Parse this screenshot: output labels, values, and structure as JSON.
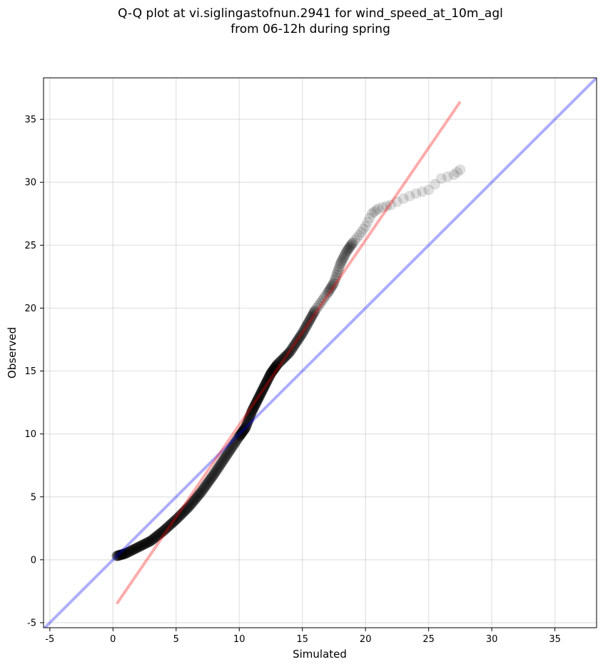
{
  "chart_data": {
    "type": "scatter",
    "title": "Q-Q plot at vi.siglingastofnun.2941 for wind_speed_at_10m_agl\nfrom 06-12h during spring",
    "title_lines": [
      "Q-Q plot at vi.siglingastofnun.2941 for wind_speed_at_10m_agl",
      "from 06-12h during spring"
    ],
    "xlabel": "Simulated",
    "ylabel": "Observed",
    "xlim": [
      -5.5,
      38.3
    ],
    "ylim": [
      -5.4,
      38.3
    ],
    "xticks": [
      -5,
      0,
      5,
      10,
      15,
      20,
      25,
      30,
      35
    ],
    "yticks": [
      -5,
      0,
      5,
      10,
      15,
      20,
      25,
      30,
      35
    ],
    "grid": true,
    "quantile_curve": [
      [
        0.3,
        0.3
      ],
      [
        1.0,
        0.5
      ],
      [
        2.0,
        1.0
      ],
      [
        3.0,
        1.5
      ],
      [
        4.0,
        2.3
      ],
      [
        5.0,
        3.2
      ],
      [
        6.0,
        4.2
      ],
      [
        7.0,
        5.4
      ],
      [
        8.0,
        6.8
      ],
      [
        9.0,
        8.3
      ],
      [
        10.0,
        9.8
      ],
      [
        10.5,
        10.5
      ],
      [
        11.0,
        11.8
      ],
      [
        11.5,
        12.8
      ],
      [
        12.0,
        13.8
      ],
      [
        12.5,
        14.8
      ],
      [
        13.0,
        15.5
      ],
      [
        14.0,
        16.5
      ],
      [
        15.0,
        18.0
      ],
      [
        16.0,
        19.8
      ],
      [
        17.0,
        21.2
      ],
      [
        17.5,
        22.0
      ],
      [
        18.0,
        23.5
      ],
      [
        18.5,
        24.5
      ],
      [
        19.0,
        25.2
      ],
      [
        19.5,
        25.8
      ],
      [
        20.0,
        26.5
      ],
      [
        20.5,
        27.5
      ],
      [
        21.0,
        27.9
      ],
      [
        22.0,
        28.2
      ],
      [
        23.0,
        28.7
      ],
      [
        24.0,
        29.1
      ],
      [
        25.0,
        29.4
      ],
      [
        26.0,
        30.3
      ],
      [
        27.0,
        30.6
      ],
      [
        27.5,
        31.0
      ]
    ],
    "series": [
      {
        "kind": "identity-line",
        "color": "#0000ff",
        "opacity": 0.32,
        "x": [
          -5.5,
          38.3
        ],
        "y": [
          -5.5,
          38.3
        ]
      },
      {
        "kind": "fit-line",
        "color": "#ff0000",
        "opacity": 0.33,
        "x": [
          0.3,
          27.5
        ],
        "y": [
          -3.5,
          36.4
        ]
      },
      {
        "kind": "quantile-points",
        "color": "#000000"
      }
    ]
  }
}
